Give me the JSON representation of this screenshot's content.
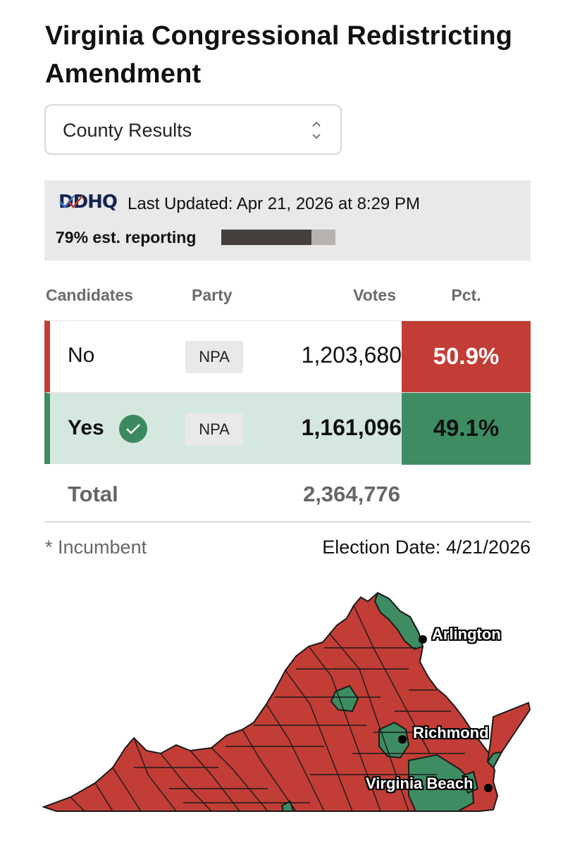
{
  "title": "Virginia Congressional Redistricting Amendment",
  "view_select": {
    "value": "County Results"
  },
  "status": {
    "logo_text": "DDHQ",
    "last_updated": "Last Updated: Apr 21, 2026 at 8:29 PM",
    "reporting_text": "79% est. reporting",
    "reporting_fraction": 0.79
  },
  "table": {
    "headers": {
      "candidates": "Candidates",
      "party": "Party",
      "votes": "Votes",
      "pct": "Pct."
    },
    "rows": [
      {
        "candidate": "No",
        "party": "NPA",
        "votes": "1,203,680",
        "pct": "50.9%",
        "winner": false,
        "color": "#c23d35"
      },
      {
        "candidate": "Yes",
        "party": "NPA",
        "votes": "1,161,096",
        "pct": "49.1%",
        "winner": true,
        "color": "#3e8c62"
      }
    ],
    "total": {
      "label": "Total",
      "votes": "2,364,776"
    }
  },
  "footnote": "* Incumbent",
  "election_date": "Election Date: 4/21/2026",
  "map": {
    "labels": {
      "arlington": "Arlington",
      "richmond": "Richmond",
      "virginia_beach": "Virginia Beach"
    },
    "colors": {
      "no": "#c23d35",
      "yes": "#3e8c62",
      "border": "#1a1a1a"
    }
  },
  "icons": {
    "select_chevron": "chevron-up-down-icon",
    "winner": "check-icon",
    "city_marker": "dot-icon"
  }
}
